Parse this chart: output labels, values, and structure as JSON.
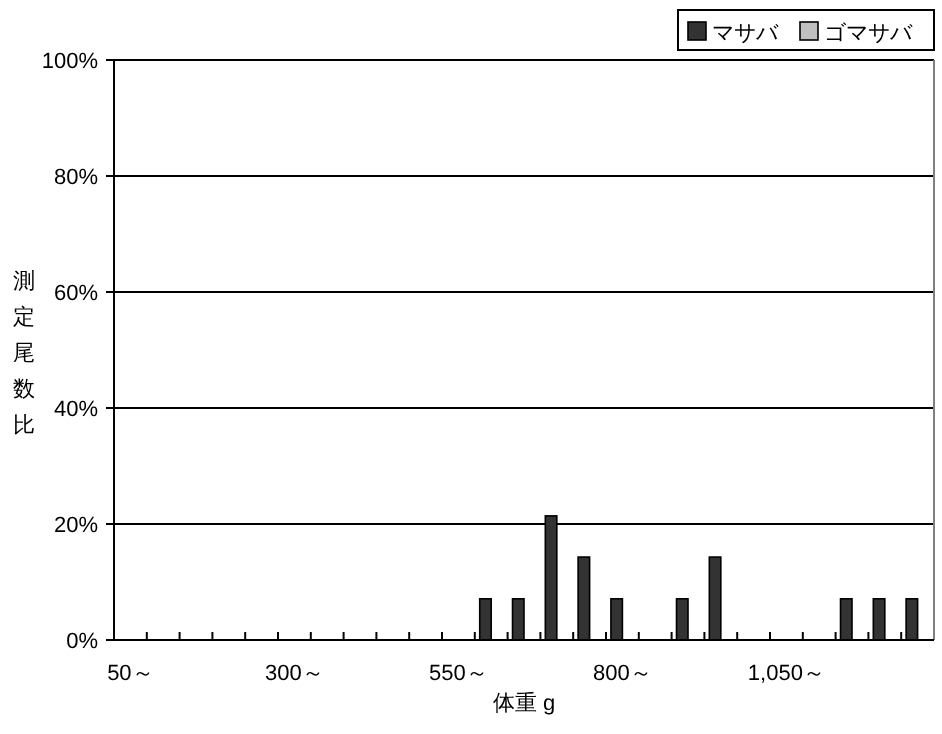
{
  "chart_data": {
    "type": "bar",
    "xlabel": "体重 g",
    "ylabel": "測定尾数比",
    "categories": [
      "50～",
      null,
      null,
      null,
      null,
      "300～",
      null,
      null,
      null,
      null,
      "550～",
      null,
      null,
      null,
      null,
      "800～",
      null,
      null,
      null,
      null,
      "1,050～",
      null,
      null,
      null,
      null
    ],
    "series": [
      {
        "name": "マサバ",
        "color": "#333333",
        "values": [
          0,
          0,
          0,
          0,
          0,
          0,
          0,
          0,
          0,
          0,
          0,
          7.1,
          7.1,
          21.4,
          14.3,
          7.1,
          0,
          7.1,
          14.3,
          0,
          0,
          0,
          7.1,
          7.1,
          7.1
        ]
      },
      {
        "name": "ゴマサバ",
        "color": "#c0c0c0",
        "values": [
          0,
          0,
          0,
          0,
          0,
          0,
          0,
          0,
          0,
          0,
          0,
          0,
          0,
          0,
          0,
          0,
          0,
          0,
          0,
          0,
          0,
          0,
          0,
          0,
          0
        ]
      }
    ],
    "ylim": [
      0,
      100
    ],
    "yticks": [
      {
        "value": 0,
        "label": "0%"
      },
      {
        "value": 20,
        "label": "20%"
      },
      {
        "value": 40,
        "label": "40%"
      },
      {
        "value": 60,
        "label": "60%"
      },
      {
        "value": 80,
        "label": "80%"
      },
      {
        "value": 100,
        "label": "100%"
      }
    ],
    "grid": "y",
    "legend": "top right"
  }
}
